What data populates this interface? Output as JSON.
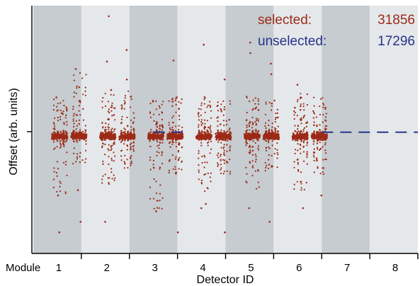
{
  "chart_data": {
    "type": "scatter",
    "title": "",
    "xlabel": "Detector ID",
    "ylabel": "Offset (arb. units)",
    "x_prefix_label": "Module",
    "categories": [
      "1",
      "2",
      "3",
      "4",
      "5",
      "6",
      "7",
      "8"
    ],
    "y_ticks": [
      {
        "value": 0,
        "label": ""
      }
    ],
    "ylim": [
      -1.15,
      1.2
    ],
    "grid": false,
    "legend_position": "top-right",
    "colors": {
      "selected": "#9c2a16",
      "unselected": "#27338c",
      "band_dark": "#c6ccd0",
      "band_light": "#e5e8ea",
      "axis": "#000000"
    },
    "counts": [
      {
        "label": "selected:",
        "value": "31856",
        "series": "selected"
      },
      {
        "label": "unselected:",
        "value": "17296",
        "series": "unselected"
      }
    ],
    "series": [
      {
        "name": "selected",
        "description": "per-module offset distributions; two detector groups per module, modules 1-6",
        "modules": [
          {
            "module": 1,
            "groups": [
              {
                "center": 1.1,
                "spread_low": -0.6,
                "spread_high": 0.33,
                "outliers": [
                  -0.95,
                  -0.6,
                  0.33,
                  0.18
                ]
              },
              {
                "center": 1.9,
                "spread_low": -0.3,
                "spread_high": 0.6,
                "outliers": [
                  -0.85,
                  0.6,
                  -0.55
                ]
              }
            ]
          },
          {
            "module": 2,
            "groups": [
              {
                "center": 3.1,
                "spread_low": -0.55,
                "spread_high": 0.38,
                "outliers": [
                  1.1,
                  0.67,
                  -0.85,
                  0.4
                ]
              },
              {
                "center": 3.9,
                "spread_low": -0.35,
                "spread_high": 0.4,
                "outliers": [
                  0.78,
                  0.5
                ]
              }
            ]
          },
          {
            "module": 3,
            "groups": [
              {
                "center": 5.1,
                "spread_low": -0.75,
                "spread_high": 0.3,
                "outliers": [
                  -0.75,
                  -0.65
                ]
              },
              {
                "center": 5.9,
                "spread_low": -0.4,
                "spread_high": 0.32,
                "outliers": [
                  0.68,
                  -0.95,
                  0.33
                ]
              }
            ]
          },
          {
            "module": 4,
            "groups": [
              {
                "center": 7.1,
                "spread_low": -0.6,
                "spread_high": 0.35,
                "outliers": [
                  0.83,
                  -0.68,
                  -0.72
                ]
              },
              {
                "center": 7.9,
                "spread_low": -0.4,
                "spread_high": 0.3,
                "outliers": [
                  -0.95,
                  0.5
                ]
              }
            ]
          },
          {
            "module": 5,
            "groups": [
              {
                "center": 9.1,
                "spread_low": -0.55,
                "spread_high": 0.35,
                "outliers": [
                  0.85,
                  0.75,
                  -0.72
                ]
              },
              {
                "center": 9.9,
                "spread_low": -0.38,
                "spread_high": 0.32,
                "outliers": [
                  -0.85,
                  0.65,
                  0.55
                ]
              }
            ]
          },
          {
            "module": 6,
            "groups": [
              {
                "center": 11.1,
                "spread_low": -0.55,
                "spread_high": 0.38,
                "outliers": [
                  -0.72,
                  0.45
                ]
              },
              {
                "center": 11.9,
                "spread_low": -0.4,
                "spread_high": 0.35,
                "outliers": [
                  -0.6
                ]
              }
            ]
          }
        ]
      },
      {
        "name": "unselected",
        "description": "constant-zero dashed segments (unselected detectors)",
        "segments": [
          {
            "x": [
              5.0,
              6.2
            ],
            "y": 0
          },
          {
            "x": [
              12.0,
              16.0
            ],
            "y": 0
          }
        ]
      }
    ]
  }
}
